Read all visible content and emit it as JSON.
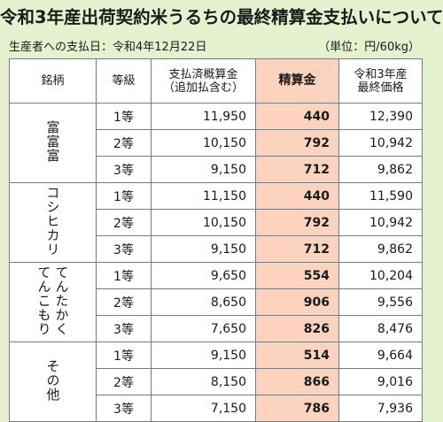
{
  "title": "令和3年産出荷契約米うるちの最終精算金支払いについて",
  "payment_date": "生産者への支払日：令和4年12月22日",
  "unit": "（単位：円/60kg）",
  "headers": {
    "brand": "銘柄",
    "grade": "等級",
    "paid": "支払済概算金\n（追加払含む）",
    "settlement": "精算金",
    "final": "令和3年産\n最終価格"
  },
  "groups": [
    {
      "brand": "富富富",
      "rows": [
        {
          "grade": "1等",
          "paid": "11,950",
          "settlement": "440",
          "final": "12,390"
        },
        {
          "grade": "2等",
          "paid": "10,150",
          "settlement": "792",
          "final": "10,942"
        },
        {
          "grade": "3等",
          "paid": "9,150",
          "settlement": "712",
          "final": "9,862"
        }
      ]
    },
    {
      "brand": "コシヒカリ",
      "rows": [
        {
          "grade": "1等",
          "paid": "11,150",
          "settlement": "440",
          "final": "11,590"
        },
        {
          "grade": "2等",
          "paid": "10,150",
          "settlement": "792",
          "final": "10,942"
        },
        {
          "grade": "3等",
          "paid": "9,150",
          "settlement": "712",
          "final": "9,862"
        }
      ]
    },
    {
      "brand": "てんたかく てんこもり",
      "rows": [
        {
          "grade": "1等",
          "paid": "9,650",
          "settlement": "554",
          "final": "10,204"
        },
        {
          "grade": "2等",
          "paid": "8,650",
          "settlement": "906",
          "final": "9,556"
        },
        {
          "grade": "3等",
          "paid": "7,650",
          "settlement": "826",
          "final": "8,476"
        }
      ]
    },
    {
      "brand": "その他",
      "rows": [
        {
          "grade": "1等",
          "paid": "9,150",
          "settlement": "514",
          "final": "9,664"
        },
        {
          "grade": "2等",
          "paid": "8,150",
          "settlement": "866",
          "final": "9,016"
        },
        {
          "grade": "3等",
          "paid": "7,150",
          "settlement": "786",
          "final": "7,936"
        }
      ]
    }
  ],
  "colors": {
    "background": "#e6f2cf",
    "highlight": "#fbd3bf"
  }
}
